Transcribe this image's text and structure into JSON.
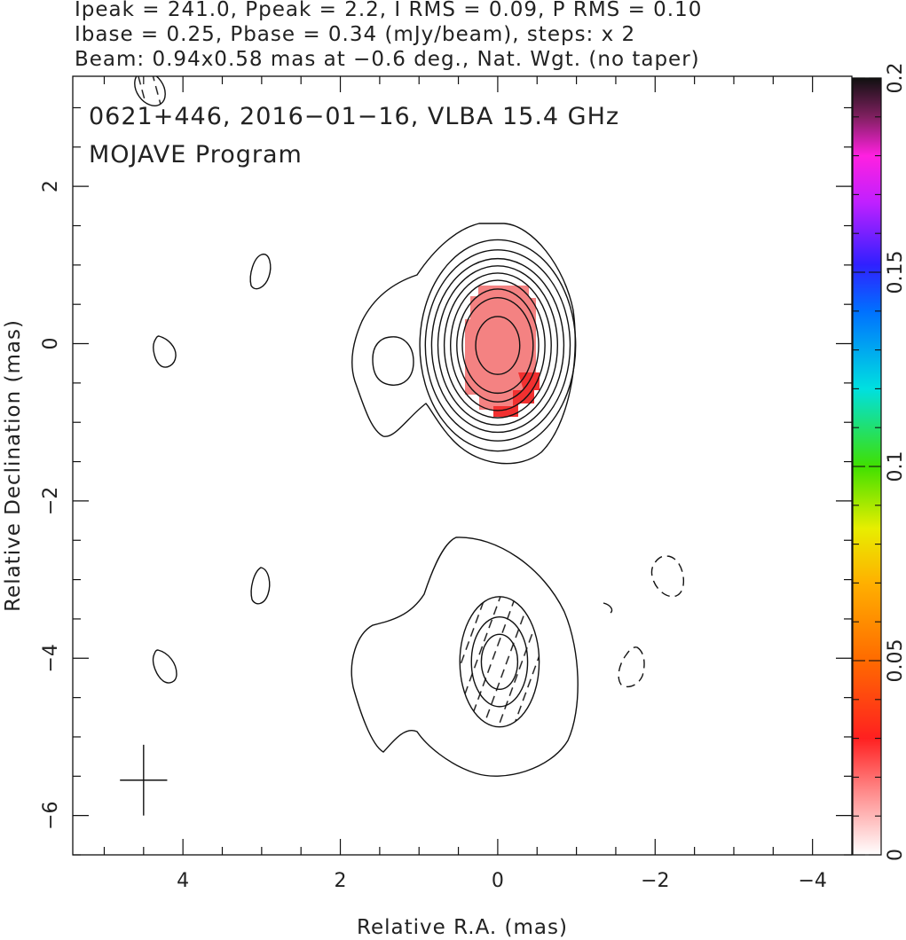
{
  "header": {
    "line1": "Ipeak = 241.0, Ppeak = 2.2, I RMS = 0.09, P RMS = 0.10",
    "line2": "Ibase = 0.25, Pbase = 0.34 (mJy/beam), steps: x 2",
    "line3": "Beam: 0.94x0.58 mas at −0.6 deg., Nat. Wgt. (no taper)"
  },
  "plot": {
    "label1": "0621+446, 2016−01−16, VLBA 15.4 GHz",
    "label2": "MOJAVE Program"
  },
  "chart_data": {
    "type": "contour",
    "title": "0621+446, 2016−01−16, VLBA 15.4 GHz",
    "subtitle": "MOJAVE Program",
    "xlabel": "Relative R.A. (mas)",
    "ylabel": "Relative Declination (mas)",
    "xlim": [
      5.4,
      -4.5
    ],
    "ylim": [
      -6.5,
      3.4
    ],
    "xticks": [
      4,
      2,
      0,
      -2,
      -4
    ],
    "yticks": [
      2,
      0,
      -2,
      -4,
      -6
    ],
    "xtick_labels": [
      "4",
      "2",
      "0",
      "−2",
      "−4"
    ],
    "ytick_labels": [
      "2",
      "0",
      "−2",
      "−4",
      "−6"
    ],
    "colorbar": {
      "range": [
        0,
        0.2
      ],
      "ticks": [
        0,
        0.05,
        0.1,
        0.15,
        0.2
      ],
      "tick_labels": [
        "0",
        "0.05",
        "0.1",
        "0.15",
        "0.2"
      ]
    },
    "upper_map": {
      "center": [
        0,
        0
      ],
      "contour_radii_mas": [
        [
          0.28,
          0.4
        ],
        [
          0.45,
          0.66
        ],
        [
          0.52,
          0.78
        ],
        [
          0.6,
          0.9
        ],
        [
          0.68,
          1.0
        ],
        [
          0.76,
          1.1
        ],
        [
          0.84,
          1.2
        ],
        [
          0.92,
          1.32
        ],
        [
          0.99,
          1.46
        ]
      ],
      "pol_color": "#f07070"
    },
    "lower_map": {
      "center": [
        0,
        -4
      ],
      "contour_radii_mas": [
        [
          0.22,
          0.38
        ],
        [
          0.34,
          0.62
        ],
        [
          0.48,
          0.9
        ]
      ]
    },
    "crosshair": {
      "x": 4.5,
      "y": -5.55,
      "half_x": 0.3,
      "half_y": 0.45
    },
    "beam": {
      "x": 4.43,
      "y": 3.2,
      "major": 0.94,
      "minor": 0.58,
      "pa": -0.6
    }
  }
}
